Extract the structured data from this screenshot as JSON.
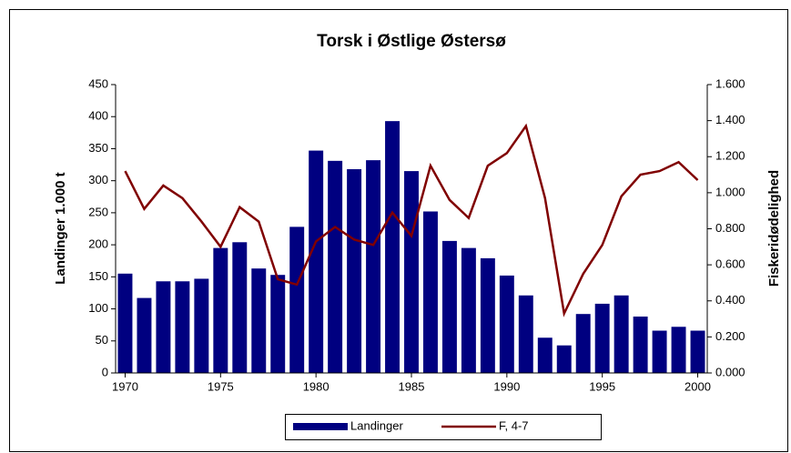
{
  "chart_data": {
    "type": "bar+line",
    "title": "Torsk i Østlige Østersø",
    "ylabel": "Landinger 1.000 t",
    "y2label": "Fiskeridødelighed",
    "x": [
      1970,
      1971,
      1972,
      1973,
      1974,
      1975,
      1976,
      1977,
      1978,
      1979,
      1980,
      1981,
      1982,
      1983,
      1984,
      1985,
      1986,
      1987,
      1988,
      1989,
      1990,
      1991,
      1992,
      1993,
      1994,
      1995,
      1996,
      1997,
      1998,
      1999,
      2000
    ],
    "series": [
      {
        "name": "Landinger",
        "type": "bar",
        "color": "#000080",
        "values": [
          155,
          117,
          143,
          143,
          147,
          195,
          204,
          163,
          153,
          228,
          347,
          331,
          318,
          332,
          393,
          315,
          252,
          206,
          195,
          179,
          152,
          121,
          55,
          43,
          92,
          108,
          121,
          88,
          66,
          72,
          66
        ]
      },
      {
        "name": "F, 4-7",
        "type": "line",
        "axis": "y2",
        "color": "#800000",
        "values": [
          1.12,
          0.91,
          1.04,
          0.97,
          0.84,
          0.7,
          0.92,
          0.84,
          0.52,
          0.49,
          0.73,
          0.81,
          0.74,
          0.71,
          0.89,
          0.76,
          1.15,
          0.96,
          0.86,
          1.15,
          1.22,
          1.37,
          0.97,
          0.33,
          0.55,
          0.71,
          0.98,
          1.1,
          1.12,
          1.17,
          1.07
        ]
      }
    ],
    "xlim": [
      1969.5,
      2000.5
    ],
    "xticks": [
      1970,
      1975,
      1980,
      1985,
      1990,
      1995,
      2000
    ],
    "ylim": [
      0,
      450
    ],
    "yticks": [
      0,
      50,
      100,
      150,
      200,
      250,
      300,
      350,
      400,
      450
    ],
    "y2lim": [
      0,
      1.6
    ],
    "y2ticks": [
      {
        "value": 0,
        "label": "0.000"
      },
      {
        "value": 0.2,
        "label": "0.200"
      },
      {
        "value": 0.4,
        "label": "0.400"
      },
      {
        "value": 0.6,
        "label": "0.600"
      },
      {
        "value": 0.8,
        "label": "0.800"
      },
      {
        "value": 1.0,
        "label": "1.000"
      },
      {
        "value": 1.2,
        "label": "1.200"
      },
      {
        "value": 1.4,
        "label": "1.400"
      },
      {
        "value": 1.6,
        "label": "1.600"
      }
    ],
    "legend": "bottom"
  }
}
